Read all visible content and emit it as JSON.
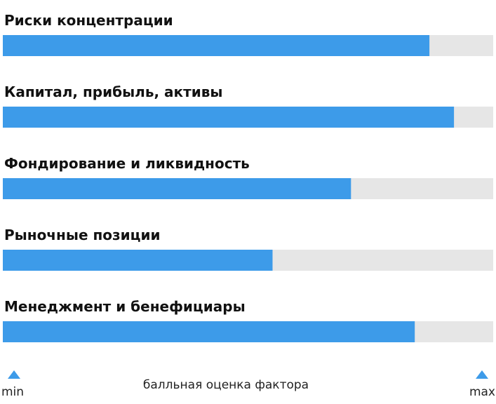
{
  "chart_data": {
    "type": "bar",
    "orientation": "horizontal",
    "categories": [
      "Риски концентрации",
      "Капитал, прибыль, активы",
      "Фондирование и ликвидность",
      "Рыночные позиции",
      "Менеджмент и бенефициары"
    ],
    "values": [
      0.87,
      0.92,
      0.71,
      0.55,
      0.84
    ],
    "xlim": [
      0,
      1
    ],
    "xlabel": "балльная оценка фактора",
    "axis_min_label": "min",
    "axis_max_label": "max",
    "grid": false,
    "legend": "none",
    "colors": {
      "bar": "#3d9be9",
      "track": "#e6e6e6",
      "marker": "#3d9be9"
    }
  }
}
